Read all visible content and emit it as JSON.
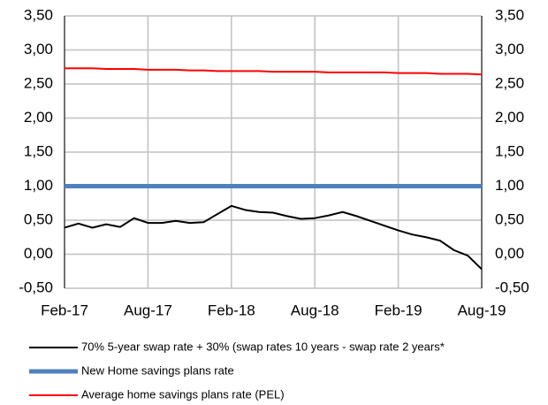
{
  "chart_data": {
    "type": "line",
    "categories": [
      "Feb-17",
      null,
      null,
      null,
      null,
      null,
      "Aug-17",
      null,
      null,
      null,
      null,
      null,
      "Feb-18",
      null,
      null,
      null,
      null,
      null,
      "Aug-18",
      null,
      null,
      null,
      null,
      null,
      "Feb-19",
      null,
      null,
      null,
      null,
      null,
      "Aug-19"
    ],
    "series": [
      {
        "name": "70% 5-year swap rate + 30% (swap rates 10 years - swap rate 2 years*",
        "color": "#000000",
        "values": [
          0.39,
          0.45,
          0.39,
          0.44,
          0.4,
          0.53,
          0.46,
          0.46,
          0.49,
          0.46,
          0.47,
          0.59,
          0.71,
          0.65,
          0.62,
          0.61,
          0.56,
          0.52,
          0.53,
          0.57,
          0.62,
          0.56,
          0.49,
          0.42,
          0.35,
          0.29,
          0.25,
          0.2,
          0.06,
          -0.02,
          -0.22
        ]
      },
      {
        "name": "New Home savings plans rate",
        "color": "#4f81bd",
        "values": [
          1,
          1,
          1,
          1,
          1,
          1,
          1,
          1,
          1,
          1,
          1,
          1,
          1,
          1,
          1,
          1,
          1,
          1,
          1,
          1,
          1,
          1,
          1,
          1,
          1,
          1,
          1,
          1,
          1,
          1,
          1
        ]
      },
      {
        "name": "Average home savings plans rate (PEL)",
        "color": "#ff0000",
        "values": [
          2.73,
          2.73,
          2.73,
          2.72,
          2.72,
          2.72,
          2.71,
          2.71,
          2.71,
          2.7,
          2.7,
          2.69,
          2.69,
          2.69,
          2.69,
          2.68,
          2.68,
          2.68,
          2.68,
          2.67,
          2.67,
          2.67,
          2.67,
          2.67,
          2.66,
          2.66,
          2.66,
          2.65,
          2.65,
          2.65,
          2.64
        ]
      }
    ],
    "ylim": [
      -0.5,
      3.5
    ],
    "yticks": [
      {
        "value": -0.5,
        "label": "-0,50"
      },
      {
        "value": 0,
        "label": "0,00"
      },
      {
        "value": 0.5,
        "label": "0,50"
      },
      {
        "value": 1,
        "label": "1,00"
      },
      {
        "value": 1.5,
        "label": "1,50"
      },
      {
        "value": 2,
        "label": "2,00"
      },
      {
        "value": 2.5,
        "label": "2,50"
      },
      {
        "value": 3,
        "label": "3,00"
      },
      {
        "value": 3.5,
        "label": "3,50"
      }
    ],
    "y2lim": [
      -0.5,
      3.5
    ],
    "y2ticks": [
      {
        "value": -0.5,
        "label": "-0,50"
      },
      {
        "value": 0,
        "label": "0,00"
      },
      {
        "value": 0.5,
        "label": "0,50"
      },
      {
        "value": 1,
        "label": "1,00"
      },
      {
        "value": 1.5,
        "label": "1,50"
      },
      {
        "value": 2,
        "label": "2,00"
      },
      {
        "value": 2.5,
        "label": "2,50"
      },
      {
        "value": 3,
        "label": "3,00"
      },
      {
        "value": 3.5,
        "label": "3,50"
      }
    ],
    "grid": true,
    "legend": "bottom"
  }
}
